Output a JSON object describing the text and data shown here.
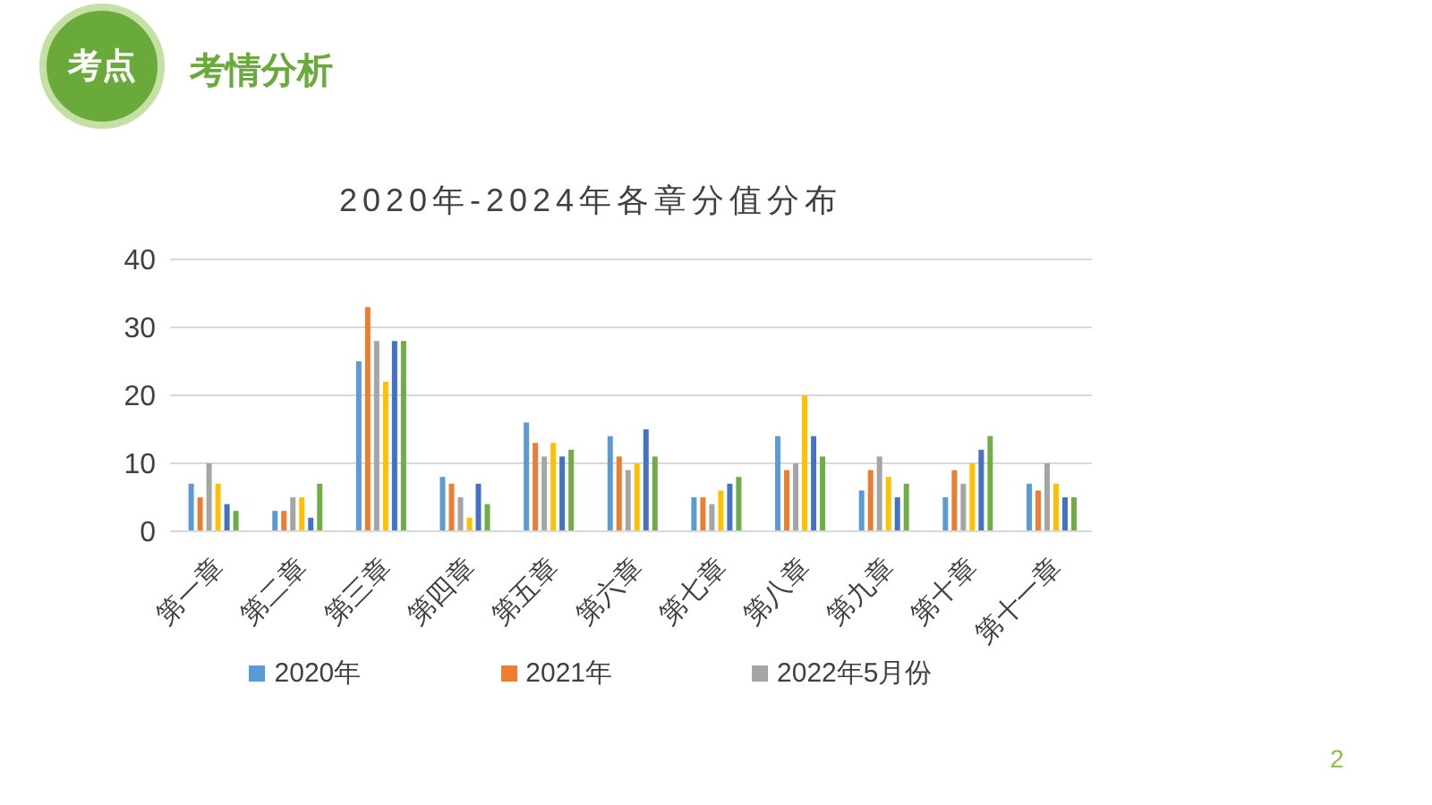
{
  "chart_data": {
    "type": "bar",
    "title": "2020年-2024年各章分值分布",
    "annotations": [
      "考点",
      "考情分析",
      "2"
    ],
    "categories": [
      "第一章",
      "第二章",
      "第三章",
      "第四章",
      "第五章",
      "第六章",
      "第七章",
      "第八章",
      "第九章",
      "第十章",
      "第十一章"
    ],
    "series": [
      {
        "name": "2020年",
        "color": "#5b9bd5",
        "values": [
          7,
          3,
          25,
          8,
          16,
          14,
          5,
          14,
          6,
          5,
          7
        ]
      },
      {
        "name": "2021年",
        "color": "#ed7d31",
        "values": [
          5,
          3,
          33,
          7,
          13,
          11,
          5,
          9,
          9,
          9,
          6
        ]
      },
      {
        "name": "2022年5月份",
        "color": "#a5a5a5",
        "values": [
          10,
          5,
          28,
          5,
          11,
          9,
          4,
          10,
          11,
          7,
          10
        ]
      },
      {
        "color": "#ffc000",
        "values": [
          7,
          5,
          22,
          2,
          13,
          10,
          6,
          20,
          8,
          10,
          7
        ]
      },
      {
        "color": "#4472c4",
        "values": [
          4,
          2,
          28,
          7,
          11,
          15,
          7,
          14,
          5,
          12,
          5
        ]
      },
      {
        "color": "#70ad47",
        "values": [
          3,
          7,
          28,
          4,
          12,
          11,
          8,
          11,
          7,
          14,
          5
        ]
      }
    ],
    "ylim": [
      0,
      40
    ],
    "yticks": [
      0,
      10,
      20,
      30,
      40
    ],
    "grid": "y",
    "legend": "bottom"
  }
}
